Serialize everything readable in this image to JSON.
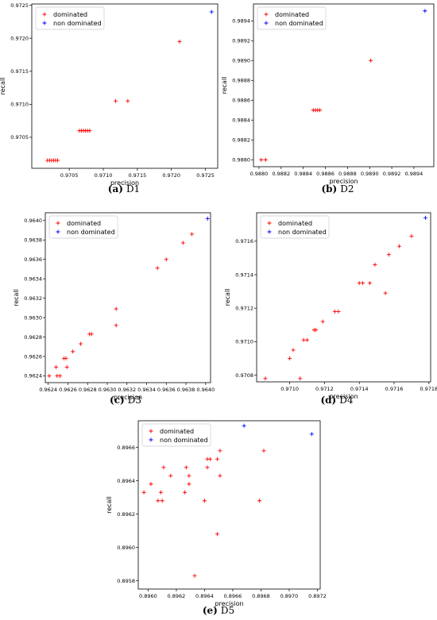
{
  "colors": {
    "dominated": "#ff0000",
    "non_dominated": "#0000ff"
  },
  "chart_data": [
    {
      "id": "D1",
      "type": "scatter",
      "caption_label": "(a)",
      "caption_name": "D1",
      "xlabel": "precision",
      "ylabel": "recall",
      "xlim": [
        0.96995,
        0.97268
      ],
      "ylim": [
        0.97003,
        0.97252
      ],
      "xticks": [
        "0.9705",
        "0.9710",
        "0.9715",
        "0.9720",
        "0.9725"
      ],
      "yticks": [
        "0.9705",
        "0.9710",
        "0.9715",
        "0.9720",
        "0.9725"
      ],
      "legend_position": "upper-left",
      "series": [
        {
          "name": "dominated",
          "color_key": "dominated",
          "points": [
            [
              0.97018,
              0.97015
            ],
            [
              0.97021,
              0.97015
            ],
            [
              0.97024,
              0.97015
            ],
            [
              0.97027,
              0.97015
            ],
            [
              0.9703,
              0.97015
            ],
            [
              0.97033,
              0.97015
            ],
            [
              0.97065,
              0.9706
            ],
            [
              0.97068,
              0.9706
            ],
            [
              0.97071,
              0.9706
            ],
            [
              0.97074,
              0.9706
            ],
            [
              0.97077,
              0.9706
            ],
            [
              0.9708,
              0.9706
            ],
            [
              0.97118,
              0.97105
            ],
            [
              0.97136,
              0.97105
            ],
            [
              0.97212,
              0.97195
            ]
          ]
        },
        {
          "name": "non dominated",
          "color_key": "non_dominated",
          "points": [
            [
              0.97259,
              0.9724
            ]
          ]
        }
      ]
    },
    {
      "id": "D2",
      "type": "scatter",
      "caption_label": "(b)",
      "caption_name": "D2",
      "xlabel": "precision",
      "ylabel": "recall",
      "xlim": [
        0.98795,
        0.98958
      ],
      "ylim": [
        0.98793,
        0.98957
      ],
      "xticks": [
        "0.9880",
        "0.9882",
        "0.9884",
        "0.9886",
        "0.9888",
        "0.9890",
        "0.9892",
        "0.9894"
      ],
      "yticks": [
        "0.9880",
        "0.9882",
        "0.9884",
        "0.9886",
        "0.9888",
        "0.9890",
        "0.9892",
        "0.9894"
      ],
      "legend_position": "upper-left",
      "series": [
        {
          "name": "dominated",
          "color_key": "dominated",
          "points": [
            [
              0.98802,
              0.988
            ],
            [
              0.98806,
              0.988
            ],
            [
              0.98849,
              0.9885
            ],
            [
              0.98851,
              0.9885
            ],
            [
              0.98853,
              0.9885
            ],
            [
              0.98855,
              0.9885
            ],
            [
              0.98901,
              0.989
            ]
          ]
        },
        {
          "name": "non dominated",
          "color_key": "non_dominated",
          "points": [
            [
              0.9895,
              0.9895
            ]
          ]
        }
      ]
    },
    {
      "id": "D3",
      "type": "scatter",
      "caption_label": "(c)",
      "caption_name": "D3",
      "xlabel": "precision",
      "ylabel": "recall",
      "xlim": [
        0.96237,
        0.96405
      ],
      "ylim": [
        0.96233,
        0.96408
      ],
      "xticks": [
        "0.9624",
        "0.9626",
        "0.9628",
        "0.9630",
        "0.9632",
        "0.9634",
        "0.9636",
        "0.9638",
        "0.9640"
      ],
      "yticks": [
        "0.9624",
        "0.9626",
        "0.9628",
        "0.9630",
        "0.9632",
        "0.9634",
        "0.9636",
        "0.9638",
        "0.9640"
      ],
      "legend_position": "upper-left",
      "series": [
        {
          "name": "dominated",
          "color_key": "dominated",
          "points": [
            [
              0.96241,
              0.9624
            ],
            [
              0.96248,
              0.96249
            ],
            [
              0.96249,
              0.9624
            ],
            [
              0.96252,
              0.9624
            ],
            [
              0.96256,
              0.96258
            ],
            [
              0.96258,
              0.96258
            ],
            [
              0.96259,
              0.96249
            ],
            [
              0.96265,
              0.96265
            ],
            [
              0.96273,
              0.96273
            ],
            [
              0.96282,
              0.96283
            ],
            [
              0.96284,
              0.96283
            ],
            [
              0.96309,
              0.96292
            ],
            [
              0.96309,
              0.96309
            ],
            [
              0.96351,
              0.96351
            ],
            [
              0.9636,
              0.9636
            ],
            [
              0.96377,
              0.96377
            ],
            [
              0.96386,
              0.96386
            ]
          ]
        },
        {
          "name": "non dominated",
          "color_key": "non_dominated",
          "points": [
            [
              0.96402,
              0.96402
            ]
          ]
        }
      ]
    },
    {
      "id": "D4",
      "type": "scatter",
      "caption_label": "(d)",
      "caption_name": "D4",
      "xlabel": "precision",
      "ylabel": "recall",
      "xlim": [
        0.97081,
        0.97181
      ],
      "ylim": [
        0.97076,
        0.97177
      ],
      "xticks": [
        "0.9710",
        "0.9712",
        "0.9714",
        "0.9716",
        "0.9718"
      ],
      "yticks": [
        "0.9708",
        "0.9710",
        "0.9712",
        "0.9714",
        "0.9716"
      ],
      "legend_position": "upper-left",
      "series": [
        {
          "name": "dominated",
          "color_key": "dominated",
          "points": [
            [
              0.97086,
              0.97078
            ],
            [
              0.971,
              0.9709
            ],
            [
              0.97102,
              0.97095
            ],
            [
              0.97106,
              0.97078
            ],
            [
              0.97108,
              0.97101
            ],
            [
              0.9711,
              0.97101
            ],
            [
              0.97114,
              0.97107
            ],
            [
              0.97115,
              0.97107
            ],
            [
              0.97119,
              0.97112
            ],
            [
              0.97126,
              0.97118
            ],
            [
              0.97128,
              0.97118
            ],
            [
              0.9714,
              0.97135
            ],
            [
              0.97142,
              0.97135
            ],
            [
              0.97146,
              0.97135
            ],
            [
              0.97149,
              0.97146
            ],
            [
              0.97155,
              0.97129
            ],
            [
              0.97157,
              0.97152
            ],
            [
              0.97163,
              0.97157
            ],
            [
              0.9717,
              0.97163
            ]
          ]
        },
        {
          "name": "non dominated",
          "color_key": "non_dominated",
          "points": [
            [
              0.97178,
              0.97174
            ]
          ]
        }
      ]
    },
    {
      "id": "D5",
      "type": "scatter",
      "caption_label": "(e)",
      "caption_name": "D5",
      "xlabel": "precision",
      "ylabel": "recall",
      "xlim": [
        0.89593,
        0.89722
      ],
      "ylim": [
        0.89575,
        0.89676
      ],
      "xticks": [
        "0.8960",
        "0.8962",
        "0.8964",
        "0.8966",
        "0.8968",
        "0.8970",
        "0.8972"
      ],
      "yticks": [
        "0.8958",
        "0.8960",
        "0.8962",
        "0.8964",
        "0.8966"
      ],
      "legend_position": "upper-left",
      "series": [
        {
          "name": "dominated",
          "color_key": "dominated",
          "points": [
            [
              0.89597,
              0.89633
            ],
            [
              0.89602,
              0.89638
            ],
            [
              0.89607,
              0.89628
            ],
            [
              0.89609,
              0.89633
            ],
            [
              0.8961,
              0.89628
            ],
            [
              0.89611,
              0.89648
            ],
            [
              0.89616,
              0.89643
            ],
            [
              0.89626,
              0.89633
            ],
            [
              0.89627,
              0.89648
            ],
            [
              0.89629,
              0.89638
            ],
            [
              0.89629,
              0.89643
            ],
            [
              0.89633,
              0.89583
            ],
            [
              0.8964,
              0.89628
            ],
            [
              0.89642,
              0.89653
            ],
            [
              0.89642,
              0.89648
            ],
            [
              0.89644,
              0.89653
            ],
            [
              0.89649,
              0.89608
            ],
            [
              0.89649,
              0.89653
            ],
            [
              0.89651,
              0.89658
            ],
            [
              0.89651,
              0.89643
            ],
            [
              0.89679,
              0.89628
            ],
            [
              0.89682,
              0.89658
            ]
          ]
        },
        {
          "name": "non dominated",
          "color_key": "non_dominated",
          "points": [
            [
              0.89668,
              0.89673
            ],
            [
              0.89716,
              0.89668
            ]
          ]
        }
      ]
    }
  ]
}
